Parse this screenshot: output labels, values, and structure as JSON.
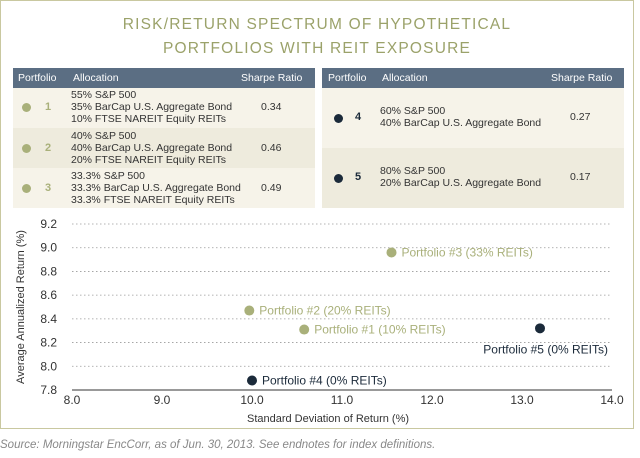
{
  "title_line1": "RISK/RETURN SPECTRUM OF HYPOTHETICAL",
  "title_line2": "PORTFOLIOS WITH REIT EXPOSURE",
  "table_left": {
    "headers": {
      "portfolio": "Portfolio",
      "allocation": "Allocation",
      "sharpe": "Sharpe Ratio"
    },
    "rows": [
      {
        "num": "1",
        "alloc1": "55% S&P 500",
        "alloc2": "35% BarCap U.S. Aggregate Bond",
        "alloc3": "10% FTSE NAREIT Equity REITs",
        "sharpe": "0.34"
      },
      {
        "num": "2",
        "alloc1": "40% S&P 500",
        "alloc2": "40% BarCap U.S. Aggregate Bond",
        "alloc3": "20% FTSE NAREIT Equity REITs",
        "sharpe": "0.46"
      },
      {
        "num": "3",
        "alloc1": "33.3% S&P 500",
        "alloc2": "33.3% BarCap U.S. Aggregate Bond",
        "alloc3": "33.3% FTSE NAREIT Equity REITs",
        "sharpe": "0.49"
      }
    ]
  },
  "table_right": {
    "headers": {
      "portfolio": "Portfolio",
      "allocation": "Allocation",
      "sharpe": "Sharpe Ratio"
    },
    "rows": [
      {
        "num": "4",
        "alloc1": "60% S&P 500",
        "alloc2": "40% BarCap U.S. Aggregate Bond",
        "sharpe": "0.27"
      },
      {
        "num": "5",
        "alloc1": "80% S&P 500",
        "alloc2": "20% BarCap U.S. Aggregate Bond",
        "sharpe": "0.17"
      }
    ]
  },
  "colors": {
    "reit": "#a9b07a",
    "no_reit": "#1b2a3a",
    "header_bg": "#5b6e83",
    "title": "#9ba26a"
  },
  "chart_data": {
    "type": "scatter",
    "xlabel": "Standard Deviation of Return (%)",
    "ylabel": "Average Annualized Return (%)",
    "xlim": [
      8.0,
      14.0
    ],
    "ylim": [
      7.8,
      9.2
    ],
    "xticks": [
      "8.0",
      "9.0",
      "10.0",
      "11.0",
      "12.0",
      "13.0",
      "14.0"
    ],
    "yticks": [
      "7.8",
      "8.0",
      "8.2",
      "8.4",
      "8.6",
      "8.8",
      "9.0",
      "9.2"
    ],
    "grid": "horizontal dotted",
    "points": [
      {
        "label": "Portfolio #1 (10% REITs)",
        "x": 10.58,
        "y": 8.31,
        "group": "reit",
        "label_side": "right"
      },
      {
        "label": "Portfolio #2 (20% REITs)",
        "x": 9.97,
        "y": 8.47,
        "group": "reit",
        "label_side": "right"
      },
      {
        "label": "Portfolio #3 (33% REITs)",
        "x": 11.55,
        "y": 8.96,
        "group": "reit",
        "label_side": "right"
      },
      {
        "label": "Portfolio #4 (0% REITs)",
        "x": 10.0,
        "y": 7.88,
        "group": "no_reit",
        "label_side": "right"
      },
      {
        "label": "Portfolio #5 (0% REITs)",
        "x": 13.2,
        "y": 8.32,
        "group": "no_reit",
        "label_side": "below-left"
      }
    ]
  },
  "source": "Source: Morningstar EncCorr, as of Jun. 30, 2013. See endnotes for index definitions."
}
